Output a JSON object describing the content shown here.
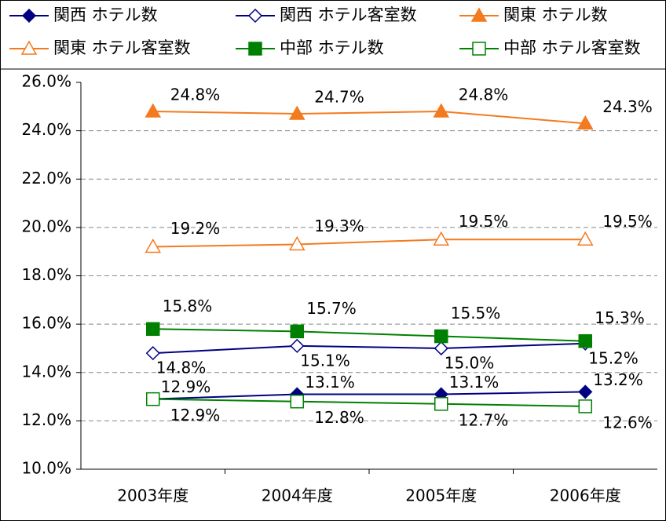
{
  "chart_data": {
    "type": "line",
    "categories": [
      "2003年度",
      "2004年度",
      "2005年度",
      "2006年度"
    ],
    "ylim": [
      10,
      26
    ],
    "yticks": [
      {
        "value": 10,
        "label": "10.0%"
      },
      {
        "value": 12,
        "label": "12.0%"
      },
      {
        "value": 14,
        "label": "14.0%"
      },
      {
        "value": 16,
        "label": "16.0%"
      },
      {
        "value": 18,
        "label": "18.0%"
      },
      {
        "value": 20,
        "label": "20.0%"
      },
      {
        "value": 22,
        "label": "22.0%"
      },
      {
        "value": 24,
        "label": "24.0%"
      },
      {
        "value": 26,
        "label": "26.0%"
      }
    ],
    "grid": true,
    "legend": "top",
    "series": [
      {
        "name": "関西 ホテル数",
        "color": "#000080",
        "marker": "diamond",
        "filled": true,
        "values": [
          12.9,
          13.1,
          13.1,
          13.2
        ],
        "value_labels": [
          "12.9%",
          "13.1%",
          "13.1%",
          "13.2%"
        ]
      },
      {
        "name": "関西 ホテル客室数",
        "color": "#000080",
        "marker": "diamond",
        "filled": false,
        "values": [
          14.8,
          15.1,
          15.0,
          15.2
        ],
        "value_labels": [
          "14.8%",
          "15.1%",
          "15.0%",
          "15.2%"
        ]
      },
      {
        "name": "関東 ホテル数",
        "color": "#f47a1f",
        "marker": "triangle",
        "filled": true,
        "values": [
          24.8,
          24.7,
          24.8,
          24.3
        ],
        "value_labels": [
          "24.8%",
          "24.7%",
          "24.8%",
          "24.3%"
        ]
      },
      {
        "name": "関東 ホテル客室数",
        "color": "#f47a1f",
        "marker": "triangle",
        "filled": false,
        "values": [
          19.2,
          19.3,
          19.5,
          19.5
        ],
        "value_labels": [
          "19.2%",
          "19.3%",
          "19.5%",
          "19.5%"
        ]
      },
      {
        "name": "中部 ホテル数",
        "color": "#008000",
        "marker": "square",
        "filled": true,
        "values": [
          15.8,
          15.7,
          15.5,
          15.3
        ],
        "value_labels": [
          "15.8%",
          "15.7%",
          "15.5%",
          "15.3%"
        ]
      },
      {
        "name": "中部 ホテル客室数",
        "color": "#008000",
        "marker": "square",
        "filled": false,
        "values": [
          12.9,
          12.8,
          12.7,
          12.6
        ],
        "value_labels": [
          "12.9%",
          "12.8%",
          "12.7%",
          "12.6%"
        ]
      }
    ]
  }
}
